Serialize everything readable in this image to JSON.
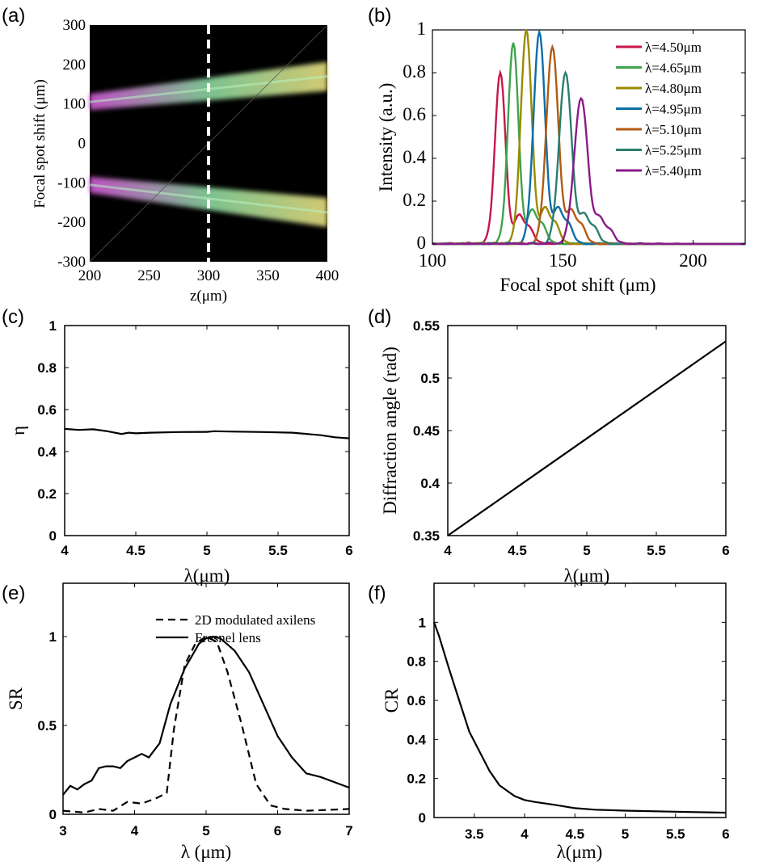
{
  "panels": {
    "a": "(a)",
    "b": "(b)",
    "c": "(c)",
    "d": "(d)",
    "e": "(e)",
    "f": "(f)"
  },
  "chart_data": [
    {
      "id": "a",
      "type": "heatmap",
      "xlabel": "z(μm)",
      "ylabel": "Focal spot shift (μm)",
      "xlim": [
        200,
        400
      ],
      "ylim": [
        -300,
        300
      ],
      "xticks": [
        "200",
        "250",
        "300",
        "350",
        "400"
      ],
      "yticks": [
        "300",
        "200",
        "100",
        "0",
        "-100",
        "-200",
        "-300"
      ],
      "marker_line_z": 300,
      "background": "#000000",
      "bands": [
        {
          "z": [
            200,
            400
          ],
          "center": [
            105,
            170
          ]
        },
        {
          "z": [
            200,
            400
          ],
          "center": [
            -105,
            -175
          ]
        }
      ]
    },
    {
      "id": "b",
      "type": "line",
      "xlabel": "Focal spot shift (μm)",
      "ylabel": "Intensity (a.u.)",
      "xlim": [
        100,
        220
      ],
      "ylim": [
        0,
        1
      ],
      "xticks": [
        "100",
        "150",
        "200"
      ],
      "yticks": [
        "0",
        "0.2",
        "0.4",
        "0.6",
        "0.8",
        "1"
      ],
      "legend_position": "top-right",
      "series": [
        {
          "name": "λ=4.50μm",
          "color": "#c8174a",
          "peak_x": 126,
          "peak": 0.8,
          "width": 2.0
        },
        {
          "name": "λ=4.65μm",
          "color": "#3fa34d",
          "peak_x": 131,
          "peak": 0.94,
          "width": 2.0
        },
        {
          "name": "λ=4.80μm",
          "color": "#9a8a00",
          "peak_x": 136,
          "peak": 1.0,
          "width": 2.1
        },
        {
          "name": "λ=4.95μm",
          "color": "#0a6ea8",
          "peak_x": 141,
          "peak": 0.99,
          "width": 2.2
        },
        {
          "name": "λ=5.10μm",
          "color": "#b25a14",
          "peak_x": 146,
          "peak": 0.92,
          "width": 2.3
        },
        {
          "name": "λ=5.25μm",
          "color": "#2a7f6e",
          "peak_x": 151,
          "peak": 0.8,
          "width": 2.4
        },
        {
          "name": "λ=5.40μm",
          "color": "#8a1a8a",
          "peak_x": 157,
          "peak": 0.68,
          "width": 2.6
        }
      ]
    },
    {
      "id": "c",
      "type": "line",
      "xlabel": "λ(μm)",
      "ylabel": "η",
      "xlim": [
        4,
        6
      ],
      "ylim": [
        0,
        1
      ],
      "xticks": [
        "4",
        "4.5",
        "5",
        "5.5",
        "6"
      ],
      "yticks": [
        "0",
        "0.2",
        "0.4",
        "0.6",
        "0.8",
        "1"
      ],
      "series": [
        {
          "x": [
            4.0,
            4.1,
            4.2,
            4.3,
            4.4,
            4.45,
            4.5,
            4.6,
            4.8,
            5.0,
            5.05,
            5.2,
            5.4,
            5.6,
            5.8,
            5.9,
            6.0
          ],
          "y": [
            0.508,
            0.503,
            0.506,
            0.497,
            0.484,
            0.49,
            0.487,
            0.49,
            0.493,
            0.494,
            0.497,
            0.495,
            0.493,
            0.49,
            0.478,
            0.468,
            0.463
          ]
        }
      ]
    },
    {
      "id": "d",
      "type": "line",
      "xlabel": "λ(μm)",
      "ylabel": "Diffraction angle (rad)",
      "xlim": [
        4,
        6
      ],
      "ylim": [
        0.35,
        0.55
      ],
      "xticks": [
        "4",
        "4.5",
        "5",
        "5.5",
        "6"
      ],
      "yticks": [
        "0.35",
        "0.4",
        "0.45",
        "0.5",
        "0.55"
      ],
      "series": [
        {
          "x": [
            4.0,
            6.0
          ],
          "y": [
            0.35,
            0.535
          ]
        }
      ]
    },
    {
      "id": "e",
      "type": "line",
      "xlabel": "λ (μm)",
      "ylabel": "SR",
      "xlim": [
        3,
        7
      ],
      "ylim": [
        0,
        1.3
      ],
      "xticks": [
        "3",
        "4",
        "5",
        "6",
        "7"
      ],
      "yticks": [
        "0",
        "0.5",
        "1"
      ],
      "legend_position": "top-right",
      "series": [
        {
          "name": "2D modulated axilens",
          "dash": true,
          "x": [
            3.0,
            3.3,
            3.5,
            3.7,
            3.9,
            4.1,
            4.3,
            4.45,
            4.55,
            4.7,
            4.85,
            5.0,
            5.15,
            5.3,
            5.5,
            5.7,
            5.9,
            6.1,
            6.4,
            6.7,
            7.0
          ],
          "y": [
            0.02,
            0.01,
            0.03,
            0.02,
            0.07,
            0.06,
            0.09,
            0.12,
            0.48,
            0.84,
            0.96,
            1.0,
            0.97,
            0.8,
            0.5,
            0.17,
            0.05,
            0.03,
            0.02,
            0.025,
            0.03
          ]
        },
        {
          "name": "Fresnel lens",
          "dash": false,
          "x": [
            3.0,
            3.1,
            3.2,
            3.3,
            3.4,
            3.5,
            3.6,
            3.7,
            3.8,
            3.9,
            4.0,
            4.1,
            4.2,
            4.35,
            4.5,
            4.7,
            4.9,
            5.0,
            5.1,
            5.2,
            5.4,
            5.6,
            5.8,
            6.0,
            6.2,
            6.4,
            6.6,
            7.0
          ],
          "y": [
            0.11,
            0.16,
            0.14,
            0.17,
            0.19,
            0.26,
            0.27,
            0.27,
            0.26,
            0.3,
            0.32,
            0.34,
            0.32,
            0.4,
            0.62,
            0.82,
            0.96,
            0.99,
            1.0,
            0.99,
            0.92,
            0.8,
            0.62,
            0.44,
            0.32,
            0.23,
            0.21,
            0.15
          ]
        }
      ]
    },
    {
      "id": "f",
      "type": "line",
      "xlabel": "λ(μm)",
      "ylabel": "CR",
      "xlim": [
        3.1,
        6
      ],
      "ylim": [
        0,
        1.2
      ],
      "xticks": [
        "3.5",
        "4",
        "4.5",
        "5",
        "5.5",
        "6"
      ],
      "yticks": [
        "0",
        "0.2",
        "0.4",
        "0.6",
        "0.8",
        "1"
      ],
      "series": [
        {
          "x": [
            3.1,
            3.15,
            3.25,
            3.35,
            3.45,
            3.55,
            3.65,
            3.75,
            3.9,
            4.0,
            4.1,
            4.3,
            4.5,
            4.7,
            5.0,
            5.5,
            6.0
          ],
          "y": [
            1.0,
            0.93,
            0.76,
            0.6,
            0.44,
            0.34,
            0.24,
            0.165,
            0.11,
            0.09,
            0.08,
            0.065,
            0.048,
            0.04,
            0.035,
            0.03,
            0.025
          ]
        }
      ]
    }
  ]
}
